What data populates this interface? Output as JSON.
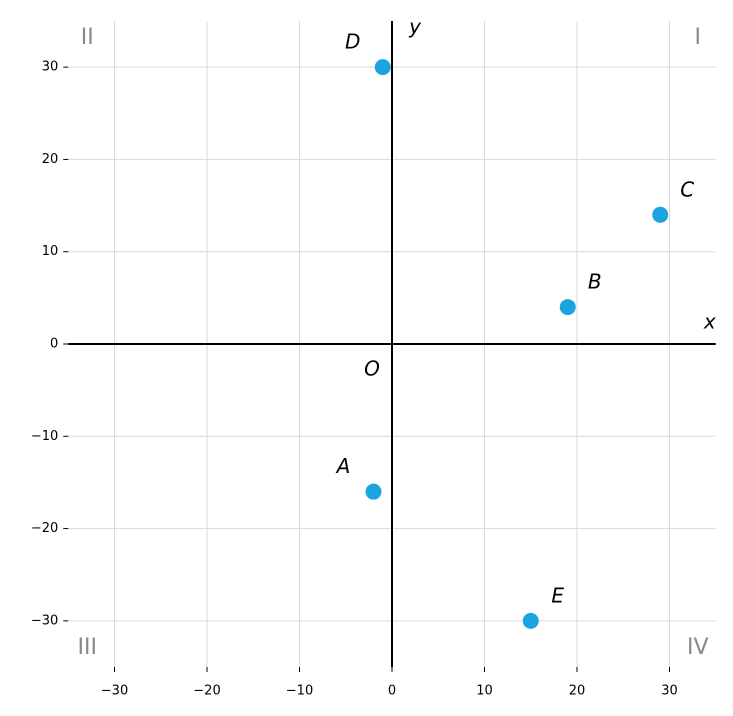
{
  "chart_data": {
    "type": "scatter",
    "x": [
      -2,
      19,
      29,
      -1,
      15
    ],
    "values": [
      -16,
      4,
      14,
      30,
      -30
    ],
    "point_labels": [
      "A",
      "B",
      "C",
      "D",
      "E"
    ],
    "color": "#1ba5e0",
    "xlabel": "x",
    "ylabel": "y",
    "origin_label": "O",
    "quadrant_labels": [
      "I",
      "II",
      "III",
      "IV"
    ],
    "xlim": [
      -35,
      35
    ],
    "ylim": [
      -35,
      35
    ],
    "xticks": [
      {
        "value": -30,
        "label": "−30"
      },
      {
        "value": -20,
        "label": "−20"
      },
      {
        "value": -10,
        "label": "−10"
      },
      0,
      10,
      20,
      30
    ],
    "yticks": [
      {
        "value": -30,
        "label": "−30"
      },
      {
        "value": -20,
        "label": "−20"
      },
      {
        "value": -10,
        "label": "−10"
      },
      0,
      10,
      20,
      30
    ],
    "grid": true
  }
}
